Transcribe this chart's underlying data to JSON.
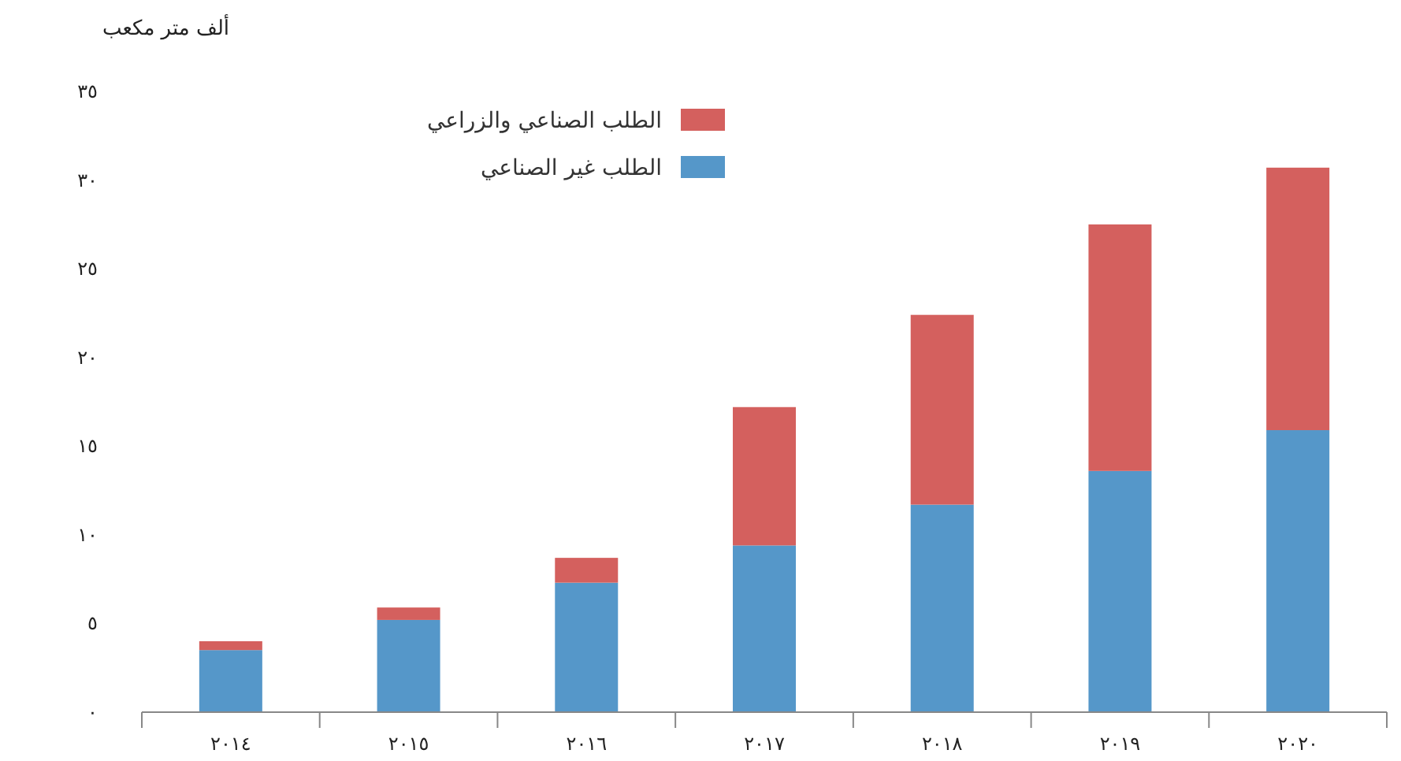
{
  "chart_data": {
    "type": "bar",
    "stacked": true,
    "ylabel": "ألف متر مكعب",
    "categories": [
      "٢٠١٤",
      "٢٠١٥",
      "٢٠١٦",
      "٢٠١٧",
      "٢٠١٨",
      "٢٠١٩",
      "٢٠٢٠"
    ],
    "series": [
      {
        "name": "الطلب غير الصناعي",
        "color": "#5597c9",
        "values": [
          3.5,
          5.2,
          7.3,
          9.4,
          11.7,
          13.6,
          15.9
        ]
      },
      {
        "name": "الطلب الصناعي والزراعي",
        "color": "#d4605e",
        "values": [
          0.5,
          0.7,
          1.4,
          7.8,
          10.7,
          13.9,
          14.8
        ]
      }
    ],
    "ylim": [
      0,
      35
    ],
    "yticks": [
      {
        "value": 0,
        "label": "٠"
      },
      {
        "value": 5,
        "label": "٥"
      },
      {
        "value": 10,
        "label": "١٠"
      },
      {
        "value": 15,
        "label": "١٥"
      },
      {
        "value": 20,
        "label": "٢٠"
      },
      {
        "value": 25,
        "label": "٢٥"
      },
      {
        "value": 30,
        "label": "٣٠"
      },
      {
        "value": 35,
        "label": "٣٥"
      }
    ],
    "legend": "top left"
  }
}
